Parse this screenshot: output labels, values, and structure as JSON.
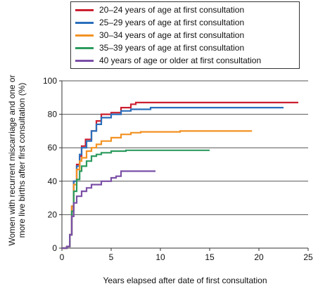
{
  "chart_data": {
    "type": "line",
    "title": "",
    "xlabel": "Years elapsed after date of first consultation",
    "ylabel": "Women with recurrent miscarriage and one or more live births after first consultation (%)",
    "xlim": [
      0,
      25
    ],
    "ylim": [
      0,
      100
    ],
    "xticks": [
      "0",
      "5",
      "10",
      "15",
      "20",
      "25"
    ],
    "yticks": [
      "0",
      "20",
      "40",
      "60",
      "80",
      "100"
    ],
    "grid": "horizontal",
    "legend_position": "top",
    "series": [
      {
        "name": "20–24 years of age at first consultation",
        "color": "#cc1f2f",
        "points": [
          [
            0,
            0
          ],
          [
            0.5,
            1
          ],
          [
            0.8,
            8
          ],
          [
            1.0,
            25
          ],
          [
            1.2,
            40
          ],
          [
            1.5,
            50
          ],
          [
            1.8,
            55
          ],
          [
            2.0,
            61
          ],
          [
            2.4,
            65
          ],
          [
            3.0,
            70
          ],
          [
            3.5,
            76
          ],
          [
            4.0,
            80
          ],
          [
            5.0,
            81
          ],
          [
            6.0,
            84
          ],
          [
            7.0,
            86
          ],
          [
            7.5,
            87
          ],
          [
            15,
            87
          ],
          [
            24,
            87
          ]
        ]
      },
      {
        "name": "25–29 years of age at first consultation",
        "color": "#2a6ebb",
        "points": [
          [
            0,
            0
          ],
          [
            0.5,
            1
          ],
          [
            0.8,
            8
          ],
          [
            1.0,
            25
          ],
          [
            1.2,
            40
          ],
          [
            1.5,
            49
          ],
          [
            1.8,
            56
          ],
          [
            2.0,
            60
          ],
          [
            2.5,
            64
          ],
          [
            3.0,
            70
          ],
          [
            3.5,
            74
          ],
          [
            4.0,
            78
          ],
          [
            5.0,
            80
          ],
          [
            6.0,
            82
          ],
          [
            7.0,
            83
          ],
          [
            9.0,
            84
          ],
          [
            15,
            84
          ],
          [
            22.5,
            84
          ]
        ]
      },
      {
        "name": "30–34 years of age at first consultation",
        "color": "#f39224",
        "points": [
          [
            0,
            0
          ],
          [
            0.5,
            1
          ],
          [
            0.8,
            8
          ],
          [
            1.0,
            25
          ],
          [
            1.2,
            38
          ],
          [
            1.5,
            47
          ],
          [
            1.8,
            52
          ],
          [
            2.0,
            54
          ],
          [
            2.5,
            58
          ],
          [
            3.0,
            60
          ],
          [
            3.5,
            62
          ],
          [
            4.0,
            64
          ],
          [
            5.0,
            66
          ],
          [
            6.0,
            68
          ],
          [
            7.0,
            69
          ],
          [
            8.0,
            69.5
          ],
          [
            12,
            70
          ],
          [
            19.3,
            70
          ]
        ]
      },
      {
        "name": "35–39 years of age at first consultation",
        "color": "#2c9b5e",
        "points": [
          [
            0,
            0
          ],
          [
            0.5,
            1
          ],
          [
            0.8,
            8
          ],
          [
            1.0,
            22
          ],
          [
            1.2,
            34
          ],
          [
            1.5,
            41
          ],
          [
            1.8,
            46
          ],
          [
            2.0,
            49
          ],
          [
            2.5,
            52
          ],
          [
            3.0,
            55
          ],
          [
            3.5,
            56
          ],
          [
            4.0,
            57
          ],
          [
            5.0,
            58
          ],
          [
            6.5,
            58.5
          ],
          [
            10,
            58.5
          ],
          [
            15,
            58.5
          ]
        ]
      },
      {
        "name": "40 years of age or older at first consultation",
        "color": "#7b4fa6",
        "points": [
          [
            0,
            0
          ],
          [
            0.5,
            1
          ],
          [
            0.8,
            8
          ],
          [
            1.0,
            19
          ],
          [
            1.2,
            27
          ],
          [
            1.5,
            31
          ],
          [
            2.0,
            34
          ],
          [
            2.5,
            36
          ],
          [
            3.0,
            38
          ],
          [
            4.0,
            40
          ],
          [
            5.0,
            42
          ],
          [
            5.5,
            43
          ],
          [
            6.0,
            46
          ],
          [
            7.0,
            46
          ],
          [
            9.5,
            46
          ]
        ]
      }
    ]
  }
}
